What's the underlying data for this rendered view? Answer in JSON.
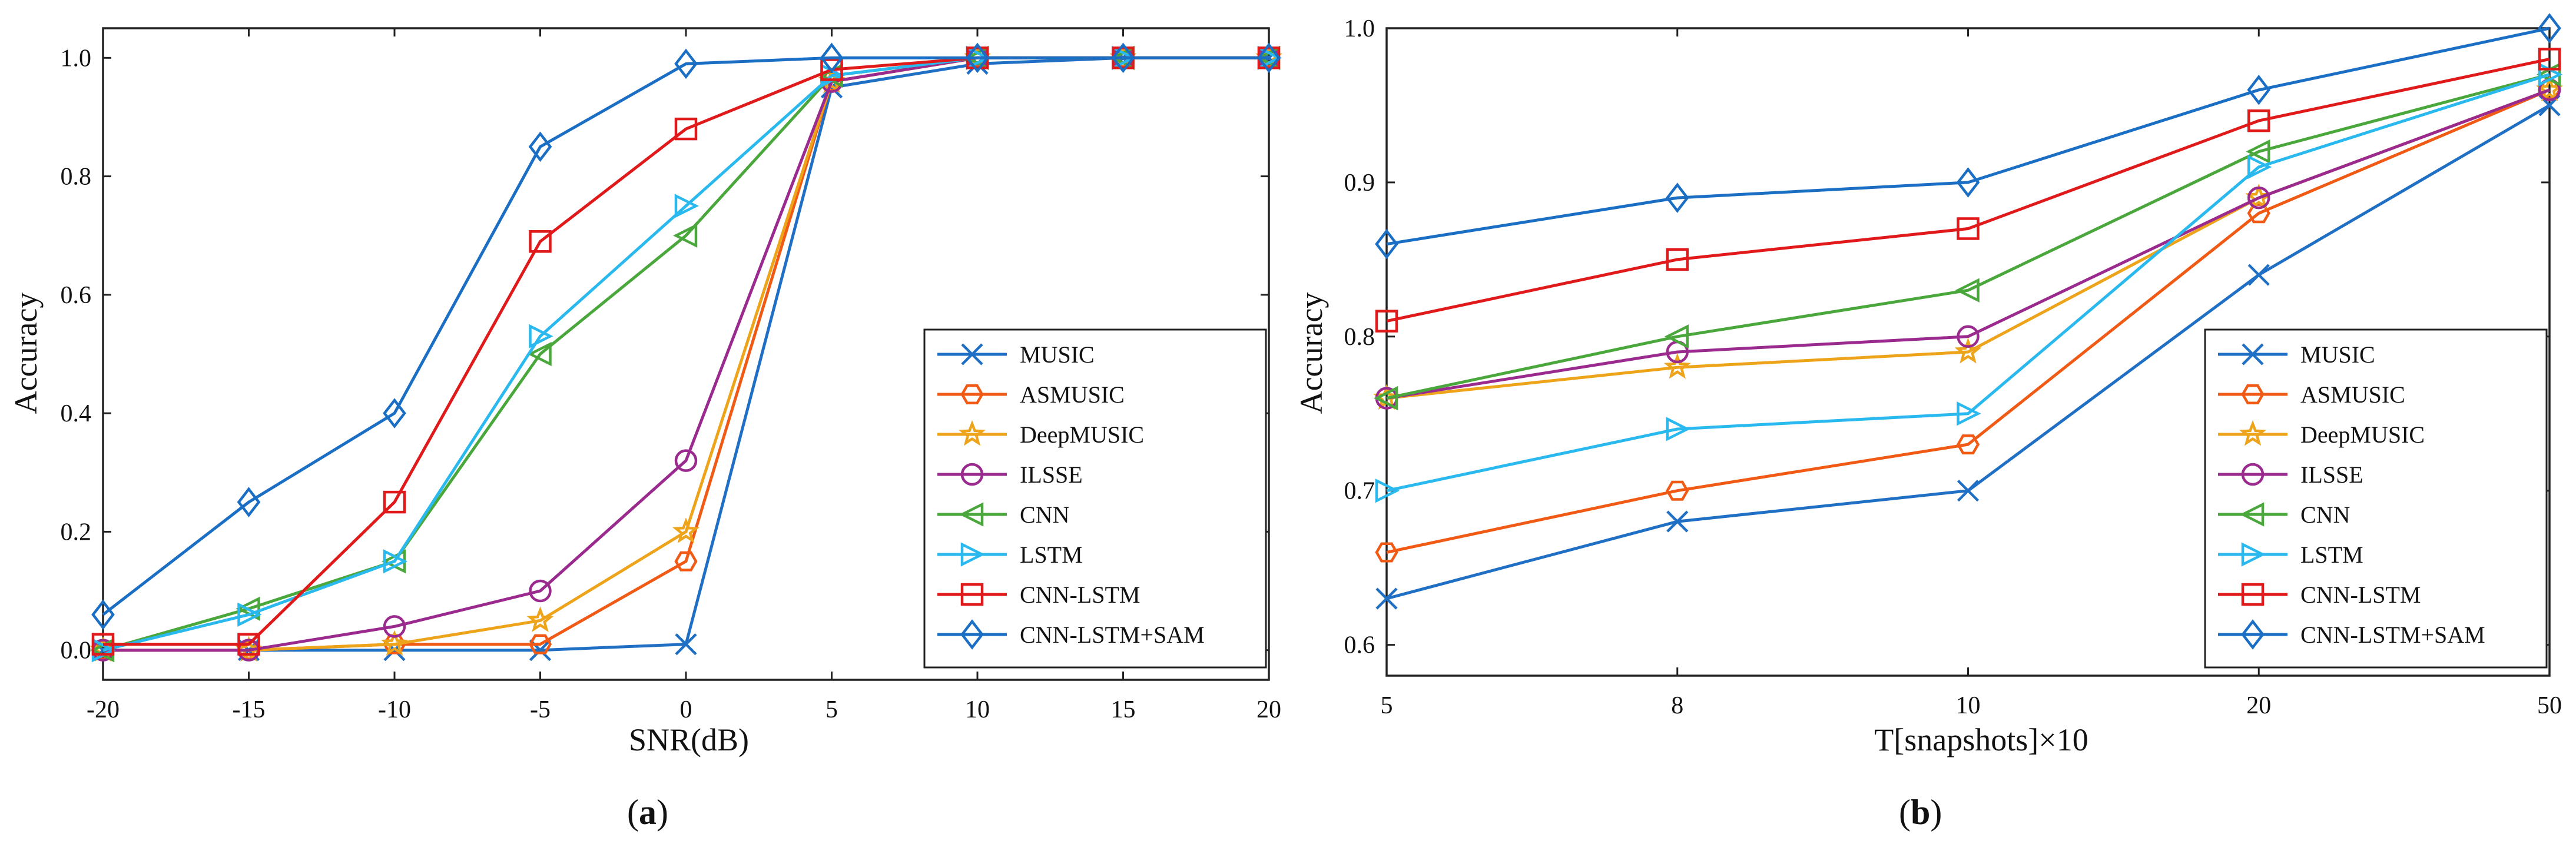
{
  "chart_data": [
    {
      "type": "line",
      "panel_label": "a",
      "xlabel": "SNR(dB)",
      "ylabel": "Accuracy",
      "x": [
        -20,
        -15,
        -10,
        -5,
        0,
        5,
        10,
        15,
        20
      ],
      "x_tick_labels": [
        "-20",
        "-15",
        "-10",
        "-5",
        "0",
        "5",
        "10",
        "15",
        "20"
      ],
      "xlim": [
        -20,
        20
      ],
      "ylim": [
        -0.05,
        1.05
      ],
      "y_ticks": [
        0.0,
        0.2,
        0.4,
        0.6,
        0.8,
        1.0
      ],
      "y_tick_labels": [
        "0.0",
        "0.2",
        "0.4",
        "0.6",
        "0.8",
        "1.0"
      ],
      "legend_position": "bottom-right",
      "series": [
        {
          "name": "MUSIC",
          "color": "#1f6fc4",
          "marker": "x",
          "values": [
            0.0,
            0.0,
            0.0,
            0.0,
            0.01,
            0.95,
            0.99,
            1.0,
            1.0
          ]
        },
        {
          "name": "ASMUSIC",
          "color": "#f05a14",
          "marker": "hexagon",
          "values": [
            0.0,
            0.0,
            0.01,
            0.01,
            0.15,
            0.96,
            1.0,
            1.0,
            1.0
          ]
        },
        {
          "name": "DeepMUSIC",
          "color": "#eda41a",
          "marker": "star",
          "values": [
            0.0,
            0.0,
            0.01,
            0.05,
            0.2,
            0.96,
            1.0,
            1.0,
            1.0
          ]
        },
        {
          "name": "ILSSE",
          "color": "#9b2a8f",
          "marker": "circle",
          "values": [
            0.0,
            0.0,
            0.04,
            0.1,
            0.32,
            0.96,
            1.0,
            1.0,
            1.0
          ]
        },
        {
          "name": "CNN",
          "color": "#4aa73c",
          "marker": "triangle-left",
          "values": [
            0.0,
            0.07,
            0.15,
            0.5,
            0.7,
            0.97,
            1.0,
            1.0,
            1.0
          ]
        },
        {
          "name": "LSTM",
          "color": "#29b9ee",
          "marker": "triangle-right",
          "values": [
            0.0,
            0.06,
            0.15,
            0.53,
            0.75,
            0.97,
            1.0,
            1.0,
            1.0
          ]
        },
        {
          "name": "CNN-LSTM",
          "color": "#e01a1a",
          "marker": "square",
          "values": [
            0.01,
            0.01,
            0.25,
            0.69,
            0.88,
            0.98,
            1.0,
            1.0,
            1.0
          ]
        },
        {
          "name": "CNN-LSTM+SAM",
          "color": "#1a6ec4",
          "marker": "diamond",
          "values": [
            0.06,
            0.25,
            0.4,
            0.85,
            0.99,
            1.0,
            1.0,
            1.0,
            1.0
          ]
        }
      ]
    },
    {
      "type": "line",
      "panel_label": "b",
      "xlabel": "T[snapshots]×10",
      "ylabel": "Accuracy",
      "categories": [
        "5",
        "8",
        "10",
        "20",
        "50"
      ],
      "ylim": [
        0.58,
        1.0
      ],
      "y_ticks": [
        0.6,
        0.7,
        0.8,
        0.9,
        1.0
      ],
      "y_tick_labels": [
        "0.6",
        "0.7",
        "0.8",
        "0.9",
        "1.0"
      ],
      "legend_position": "bottom-right",
      "series": [
        {
          "name": "MUSIC",
          "color": "#1f6fc4",
          "marker": "x",
          "values": [
            0.63,
            0.68,
            0.7,
            0.84,
            0.95
          ]
        },
        {
          "name": "ASMUSIC",
          "color": "#f05a14",
          "marker": "hexagon",
          "values": [
            0.66,
            0.7,
            0.73,
            0.88,
            0.96
          ]
        },
        {
          "name": "DeepMUSIC",
          "color": "#eda41a",
          "marker": "star",
          "values": [
            0.76,
            0.78,
            0.79,
            0.89,
            0.96
          ]
        },
        {
          "name": "ILSSE",
          "color": "#9b2a8f",
          "marker": "circle",
          "values": [
            0.76,
            0.79,
            0.8,
            0.89,
            0.96
          ]
        },
        {
          "name": "CNN",
          "color": "#4aa73c",
          "marker": "triangle-left",
          "values": [
            0.76,
            0.8,
            0.83,
            0.92,
            0.97
          ]
        },
        {
          "name": "LSTM",
          "color": "#29b9ee",
          "marker": "triangle-right",
          "values": [
            0.7,
            0.74,
            0.75,
            0.91,
            0.97
          ]
        },
        {
          "name": "CNN-LSTM",
          "color": "#e01a1a",
          "marker": "square",
          "values": [
            0.81,
            0.85,
            0.87,
            0.94,
            0.98
          ]
        },
        {
          "name": "CNN-LSTM+SAM",
          "color": "#1a6ec4",
          "marker": "diamond",
          "values": [
            0.86,
            0.89,
            0.9,
            0.96,
            1.0
          ]
        }
      ]
    }
  ]
}
